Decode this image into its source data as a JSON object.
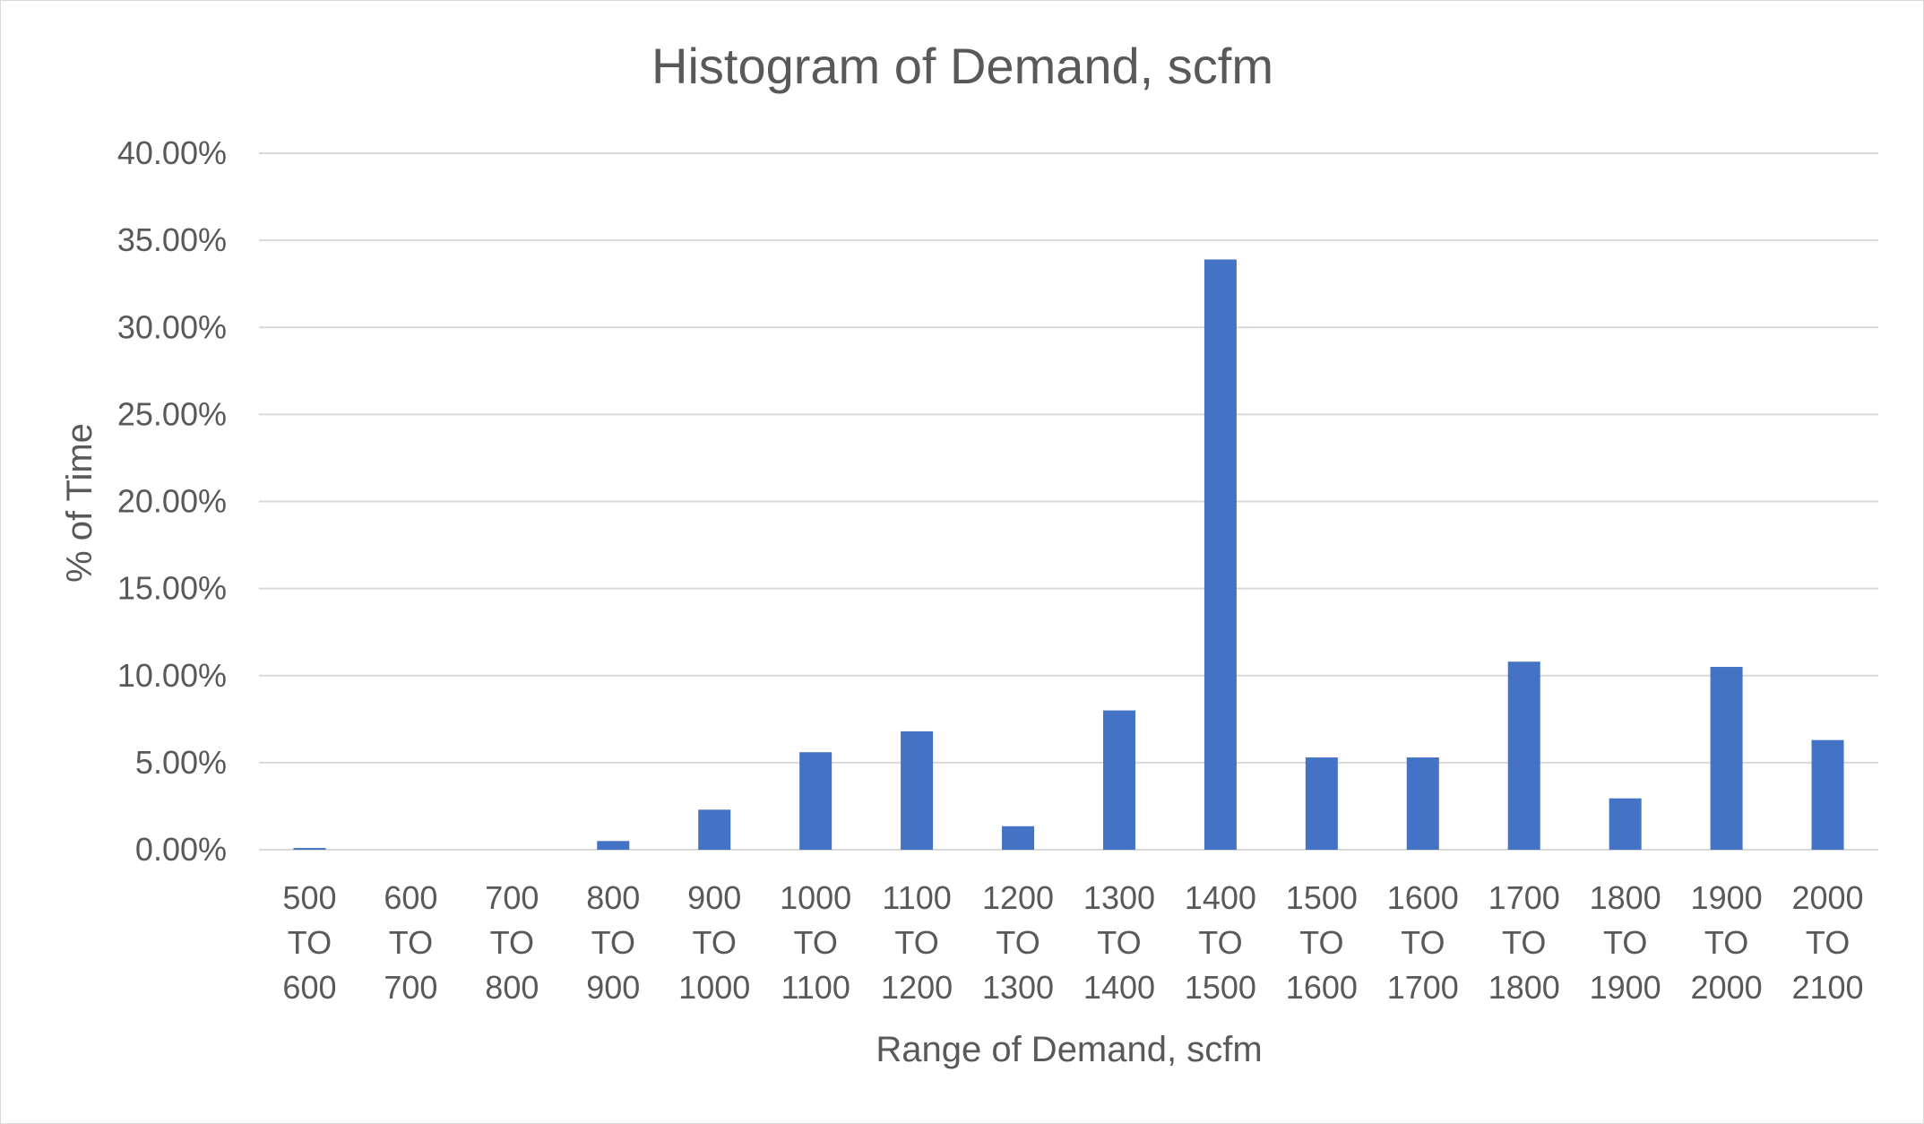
{
  "chart_data": {
    "type": "bar",
    "title": "Histogram of Demand, scfm",
    "xlabel": "Range of Demand, scfm",
    "ylabel": "% of Time",
    "categories": [
      [
        "500",
        "TO",
        "600"
      ],
      [
        "600",
        "TO",
        "700"
      ],
      [
        "700",
        "TO",
        "800"
      ],
      [
        "800",
        "TO",
        "900"
      ],
      [
        "900",
        "TO",
        "1000"
      ],
      [
        "1000",
        "TO",
        "1100"
      ],
      [
        "1100",
        "TO",
        "1200"
      ],
      [
        "1200",
        "TO",
        "1300"
      ],
      [
        "1300",
        "TO",
        "1400"
      ],
      [
        "1400",
        "TO",
        "1500"
      ],
      [
        "1500",
        "TO",
        "1600"
      ],
      [
        "1600",
        "TO",
        "1700"
      ],
      [
        "1700",
        "TO",
        "1800"
      ],
      [
        "1800",
        "TO",
        "1900"
      ],
      [
        "1900",
        "TO",
        "2000"
      ],
      [
        "2000",
        "TO",
        "2100"
      ]
    ],
    "values": [
      0.1,
      0,
      0,
      0.5,
      2.3,
      5.6,
      6.8,
      1.35,
      8.0,
      33.9,
      5.3,
      5.3,
      10.8,
      2.95,
      10.5,
      6.3
    ],
    "yticks": [
      "0.00%",
      "5.00%",
      "10.00%",
      "15.00%",
      "20.00%",
      "25.00%",
      "30.00%",
      "35.00%",
      "40.00%"
    ],
    "ylim": [
      0,
      40
    ],
    "grid": true,
    "legend": "none",
    "colors": {
      "bar": "#4472c4",
      "grid": "#d9d9d9",
      "text": "#595959"
    }
  }
}
